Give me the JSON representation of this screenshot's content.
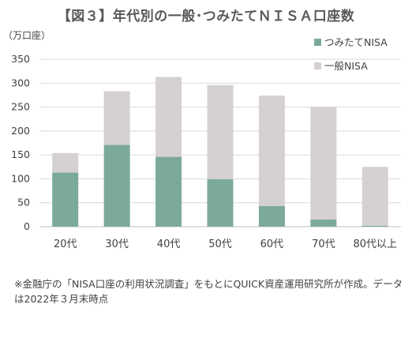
{
  "title": "【図３】年代別の一般･つみたてＮＩＳＡ口座数",
  "footnote": "※金融庁の「NISA口座の利用状況調査」をもとにQUICK資産運用研究所が作成。データは2022年３月末時点",
  "chart_data": {
    "type": "bar",
    "stacked": true,
    "unit_label": "（万口座）",
    "categories": [
      "20代",
      "30代",
      "40代",
      "50代",
      "60代",
      "70代",
      "80代以上"
    ],
    "series": [
      {
        "name": "つみたてNISA",
        "color": "#7ba99a",
        "values": [
          113,
          171,
          146,
          99,
          43,
          15,
          2
        ]
      },
      {
        "name": "一般NISA",
        "color": "#d6d1d1",
        "values": [
          41,
          112,
          167,
          197,
          231,
          235,
          123
        ]
      }
    ],
    "yticks": [
      0,
      50,
      100,
      150,
      200,
      250,
      300,
      350
    ],
    "ylim": [
      0,
      350
    ],
    "grid": true,
    "legend_position": "top-right"
  }
}
